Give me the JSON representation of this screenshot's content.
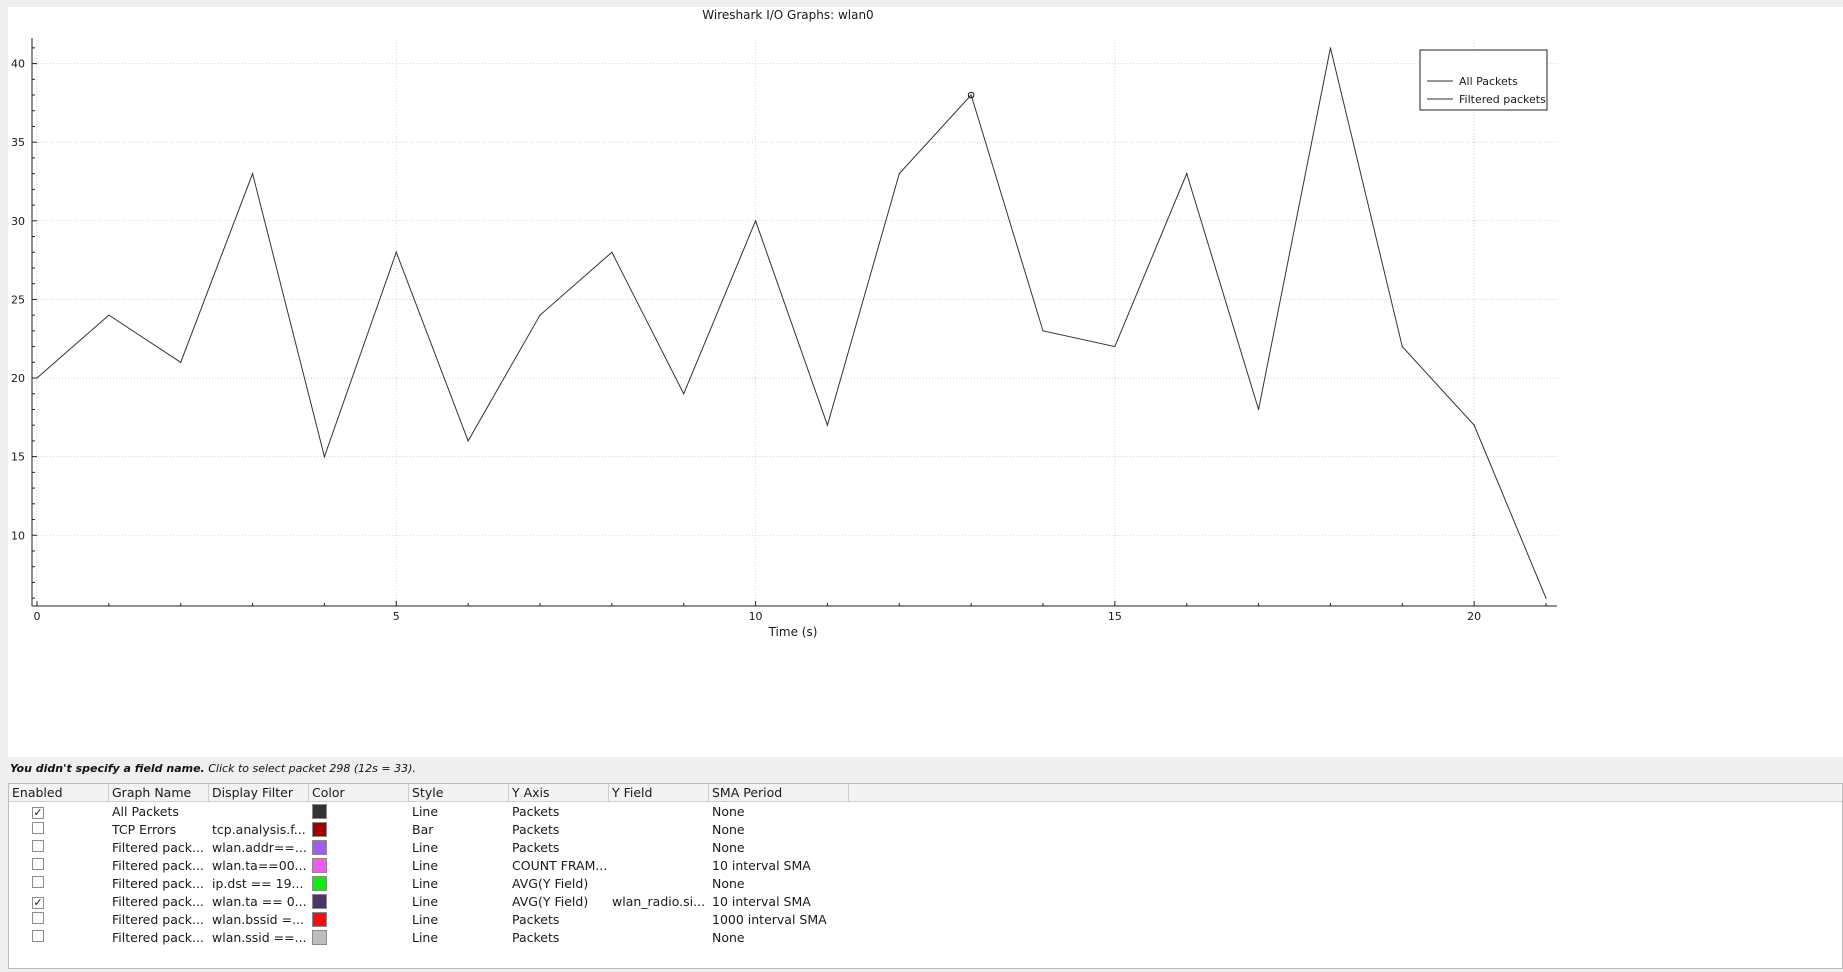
{
  "window": {
    "title": "Wireshark I/O Graphs: wlan0"
  },
  "chart_data": {
    "type": "line",
    "title": "Wireshark I/O Graphs: wlan0",
    "xlabel": "Time (s)",
    "ylabel": "",
    "xlim": [
      0,
      21
    ],
    "ylim": [
      5.5,
      41.5
    ],
    "x_ticks": [
      0,
      5,
      10,
      15,
      20
    ],
    "y_ticks": [
      10,
      15,
      20,
      25,
      30,
      35,
      40
    ],
    "grid": true,
    "legend_position": "top-right",
    "legend": [
      "All Packets",
      "Filtered packets"
    ],
    "series": [
      {
        "name": "All Packets",
        "color": "#333333",
        "x": [
          0,
          1,
          2,
          3,
          4,
          5,
          6,
          7,
          8,
          9,
          10,
          11,
          12,
          13,
          14,
          15,
          16,
          17,
          18,
          19,
          20,
          21
        ],
        "values": [
          20,
          24,
          21,
          33,
          15,
          28,
          16,
          24,
          28,
          19,
          30,
          17,
          33,
          38,
          23,
          22,
          33,
          18,
          41,
          22,
          17,
          6
        ]
      }
    ],
    "highlight_point": {
      "x": 13,
      "y": 38
    }
  },
  "hint": {
    "bold": "You didn't specify a field name.",
    "rest": "Click to select packet 298 (12s = 33)."
  },
  "table": {
    "headers": [
      "Enabled",
      "Graph Name",
      "Display Filter",
      "Color",
      "Style",
      "Y Axis",
      "Y Field",
      "SMA Period"
    ],
    "rows": [
      {
        "enabled": true,
        "name": "All Packets",
        "filter": "",
        "color": "#333333",
        "style": "Line",
        "yaxis": "Packets",
        "yfield": "",
        "sma": "None"
      },
      {
        "enabled": false,
        "name": "TCP Errors",
        "filter": "tcp.analysis.f...",
        "color": "#a00000",
        "style": "Bar",
        "yaxis": "Packets",
        "yfield": "",
        "sma": "None"
      },
      {
        "enabled": false,
        "name": "Filtered pack...",
        "filter": "wlan.addr==...",
        "color": "#a35cf3",
        "style": "Line",
        "yaxis": "Packets",
        "yfield": "",
        "sma": "None"
      },
      {
        "enabled": false,
        "name": "Filtered pack...",
        "filter": "wlan.ta==00...",
        "color": "#f05cf0",
        "style": "Line",
        "yaxis": "COUNT FRAM...",
        "yfield": "",
        "sma": "10 interval SMA"
      },
      {
        "enabled": false,
        "name": "Filtered pack...",
        "filter": "ip.dst == 19...",
        "color": "#0bf00b",
        "style": "Line",
        "yaxis": "AVG(Y Field)",
        "yfield": "",
        "sma": "None"
      },
      {
        "enabled": true,
        "name": "Filtered pack...",
        "filter": "wlan.ta == 0...",
        "color": "#4f3563",
        "style": "Line",
        "yaxis": "AVG(Y Field)",
        "yfield": "wlan_radio.si...",
        "sma": "10 interval SMA"
      },
      {
        "enabled": false,
        "name": "Filtered pack...",
        "filter": "wlan.bssid =...",
        "color": "#ef1010",
        "style": "Line",
        "yaxis": "Packets",
        "yfield": "",
        "sma": "1000 interval SMA"
      },
      {
        "enabled": false,
        "name": "Filtered pack...",
        "filter": "wlan.ssid ==...",
        "color": "#bdbdbd",
        "style": "Line",
        "yaxis": "Packets",
        "yfield": "",
        "sma": "None"
      }
    ]
  }
}
